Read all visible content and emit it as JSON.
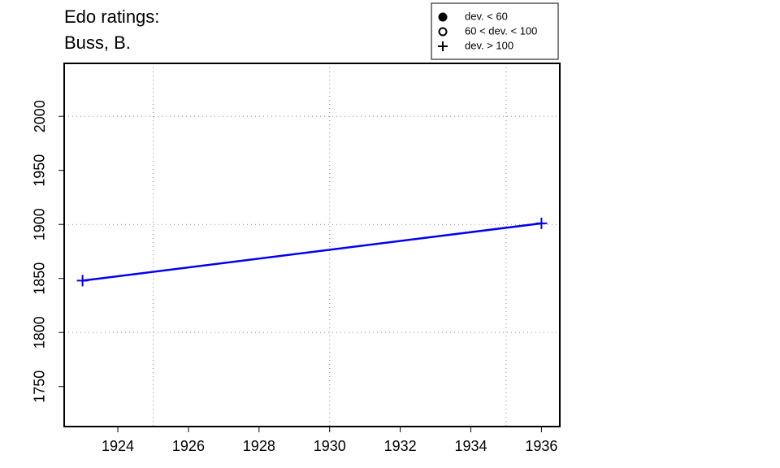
{
  "chart_data": {
    "type": "line",
    "title_lines": [
      "Edo ratings:",
      "Buss, B."
    ],
    "x": [
      1923,
      1936
    ],
    "series": [
      {
        "color": "#0000ee",
        "marker": "plus",
        "values": [
          1848,
          1901
        ]
      }
    ],
    "xlim": [
      1922.48,
      1936.52
    ],
    "ylim": [
      1713,
      2049
    ],
    "xticks": [
      1924,
      1926,
      1928,
      1930,
      1932,
      1934,
      1936
    ],
    "yticks": [
      1750,
      1800,
      1850,
      1900,
      1950,
      2000
    ],
    "xgrid": [
      1925,
      1930,
      1935
    ],
    "ygrid": [
      1800,
      1900,
      2000
    ],
    "legend": [
      {
        "label": "dev. < 60",
        "symbol": "filled-circle"
      },
      {
        "label": "60 < dev. < 100",
        "symbol": "open-circle"
      },
      {
        "label": "dev. > 100",
        "symbol": "plus"
      }
    ],
    "legend_position": "top-right"
  }
}
